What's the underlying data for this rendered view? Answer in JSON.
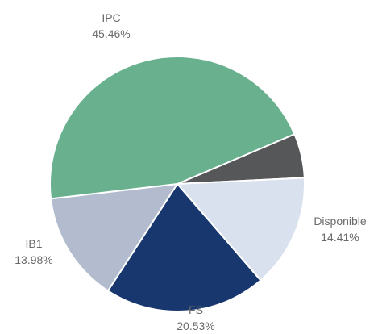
{
  "chart_data": {
    "type": "pie",
    "title": "",
    "slices": [
      {
        "name": "",
        "value": 5.62,
        "color": "#555759",
        "label": ""
      },
      {
        "name": "Disponible",
        "value": 14.41,
        "color": "#dae1ee",
        "label": "14.41%"
      },
      {
        "name": "FS",
        "value": 20.53,
        "color": "#17376e",
        "label": "20.53%"
      },
      {
        "name": "IB1",
        "value": 13.98,
        "color": "#b3bcce",
        "label": "13.98%"
      },
      {
        "name": "IPC",
        "value": 45.46,
        "color": "#68b08e",
        "label": "45.46%"
      }
    ],
    "legend": "none"
  }
}
